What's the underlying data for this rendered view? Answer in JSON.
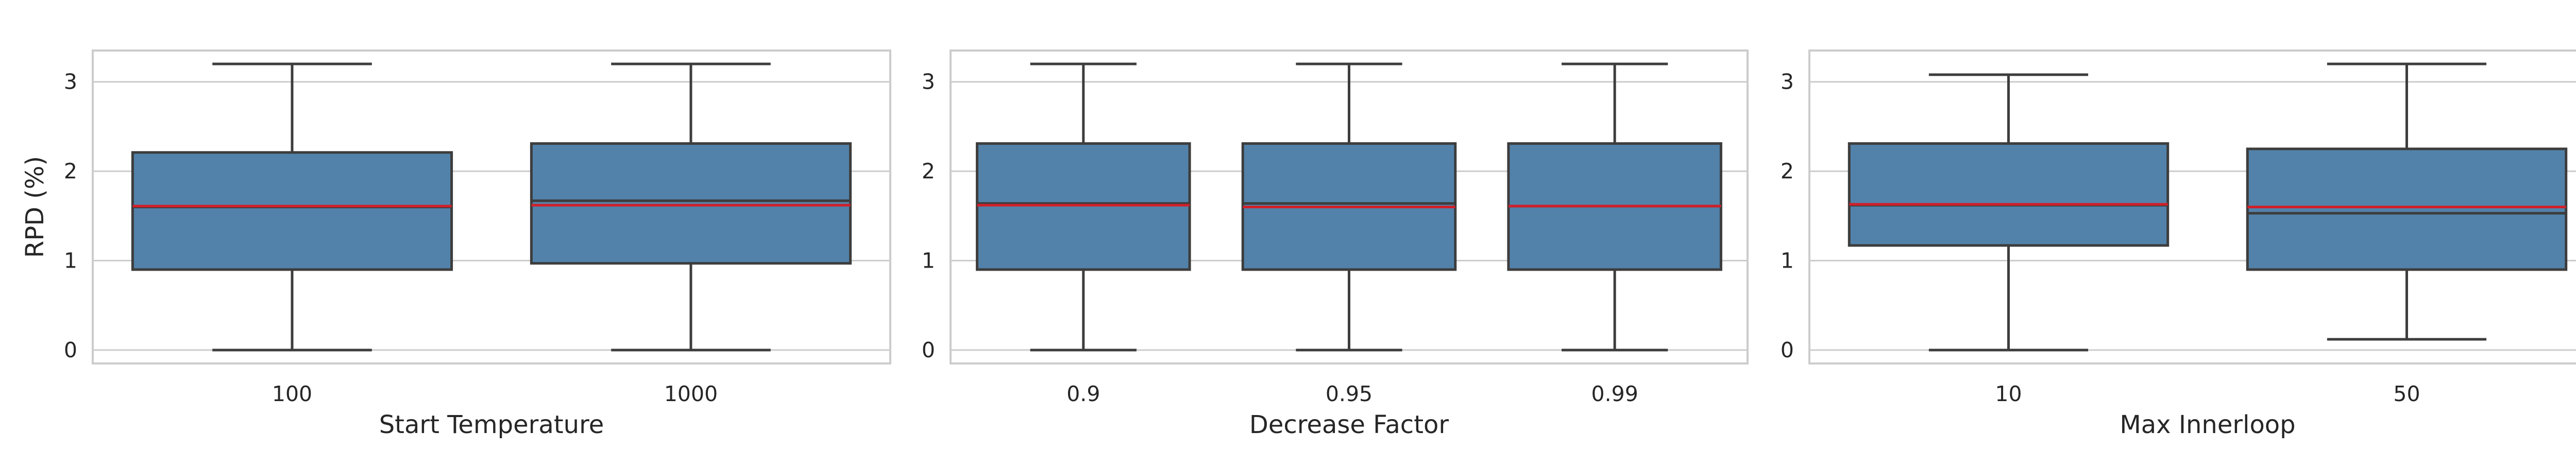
{
  "colors": {
    "box_fill": "#5282AA",
    "box_edge": "#3D3D3D",
    "median_line": "#3D3D3D",
    "mean_line": "#D0202A",
    "grid": "#CCCCCC",
    "frame": "#CCCCCC"
  },
  "chart_data": [
    {
      "type": "box",
      "xlabel": "Start Temperature",
      "ylabel": "RPD (%)",
      "ylim": [
        -0.15,
        3.35
      ],
      "yticks": [
        0,
        1,
        2,
        3
      ],
      "grid": true,
      "categories": [
        "100",
        "1000"
      ],
      "boxes": [
        {
          "min": 0.0,
          "q1": 0.9,
          "median": 1.6,
          "mean": 1.61,
          "q3": 2.21,
          "max": 3.2
        },
        {
          "min": 0.0,
          "q1": 0.97,
          "median": 1.67,
          "mean": 1.62,
          "q3": 2.31,
          "max": 3.2
        }
      ]
    },
    {
      "type": "box",
      "xlabel": "Decrease Factor",
      "ylabel": "",
      "ylim": [
        -0.15,
        3.35
      ],
      "yticks": [
        0,
        1,
        2,
        3
      ],
      "grid": true,
      "categories": [
        "0.9",
        "0.95",
        "0.99"
      ],
      "boxes": [
        {
          "min": 0.0,
          "q1": 0.9,
          "median": 1.64,
          "mean": 1.62,
          "q3": 2.31,
          "max": 3.2
        },
        {
          "min": 0.0,
          "q1": 0.9,
          "median": 1.64,
          "mean": 1.6,
          "q3": 2.31,
          "max": 3.2
        },
        {
          "min": 0.0,
          "q1": 0.9,
          "median": 1.61,
          "mean": 1.61,
          "q3": 2.31,
          "max": 3.2
        }
      ]
    },
    {
      "type": "box",
      "xlabel": "Max Innerloop",
      "ylabel": "",
      "ylim": [
        -0.15,
        3.35
      ],
      "yticks": [
        0,
        1,
        2,
        3
      ],
      "grid": true,
      "categories": [
        "10",
        "50"
      ],
      "boxes": [
        {
          "min": 0.0,
          "q1": 1.17,
          "median": 1.62,
          "mean": 1.63,
          "q3": 2.31,
          "max": 3.08
        },
        {
          "min": 0.12,
          "q1": 0.9,
          "median": 1.53,
          "mean": 1.6,
          "q3": 2.25,
          "max": 3.2
        }
      ]
    }
  ]
}
